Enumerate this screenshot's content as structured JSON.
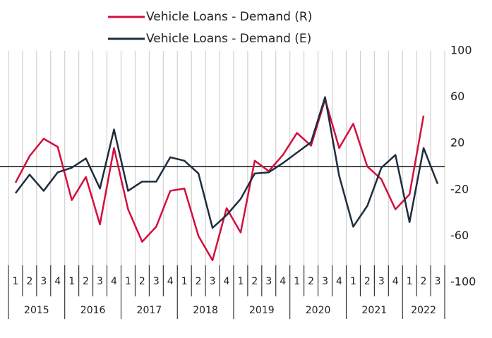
{
  "chart_data": {
    "type": "line",
    "categories": [
      "1",
      "2",
      "3",
      "4",
      "1",
      "2",
      "3",
      "4",
      "1",
      "2",
      "3",
      "4",
      "1",
      "2",
      "3",
      "4",
      "1",
      "2",
      "3",
      "4",
      "1",
      "2",
      "3",
      "4",
      "1",
      "2",
      "3",
      "4",
      "1",
      "2",
      "3"
    ],
    "years": [
      "2015",
      "2016",
      "2017",
      "2018",
      "2019",
      "2020",
      "2021",
      "2022"
    ],
    "series": [
      {
        "name": "Vehicle Loans - Demand (R)",
        "color": "#d40f3d",
        "values": [
          -14,
          9,
          24,
          17,
          -29,
          -9,
          -50,
          16,
          -37,
          -65,
          -52,
          -21,
          -19,
          -60,
          -81,
          -36,
          -57,
          5,
          -4,
          10,
          29,
          18,
          58,
          16,
          37,
          0,
          -11,
          -37,
          -24,
          44,
          null
        ]
      },
      {
        "name": "Vehicle Loans - Demand (E)",
        "color": "#1f2d3f",
        "values": [
          -23,
          -7,
          -21,
          -5,
          -1,
          7,
          -19,
          32,
          -21,
          -13,
          -13,
          8,
          5,
          -6,
          -53,
          -42,
          -28,
          -6,
          -5,
          3,
          12,
          21,
          60,
          -8,
          -52,
          -34,
          -1,
          10,
          -48,
          16,
          -15
        ]
      }
    ],
    "ylim": [
      -100,
      100
    ],
    "yticks": [
      100,
      60,
      20,
      -20,
      -60,
      -100
    ],
    "grid": true
  }
}
